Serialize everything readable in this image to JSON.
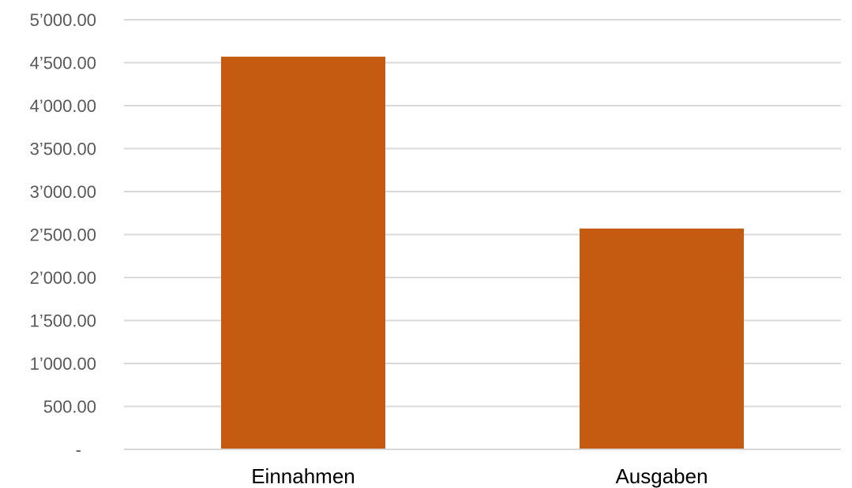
{
  "chart_data": {
    "type": "bar",
    "categories": [
      "Einnahmen",
      "Ausgaben"
    ],
    "values": [
      4570,
      2570
    ],
    "ylim": [
      0,
      5000
    ],
    "ytick_values": [
      0,
      500,
      1000,
      1500,
      2000,
      2500,
      3000,
      3500,
      4000,
      4500,
      5000
    ],
    "ytick_labels": [
      "-",
      "500.00",
      "1’000.00",
      "1’500.00",
      "2’000.00",
      "2’500.00",
      "3’000.00",
      "3’500.00",
      "4’000.00",
      "4’500.00",
      "5’000.00"
    ],
    "grid": true,
    "legend": "none",
    "title": "",
    "xlabel": "",
    "ylabel": "",
    "bar_color": "#c55a11",
    "grid_color": "#d9d9d9"
  }
}
